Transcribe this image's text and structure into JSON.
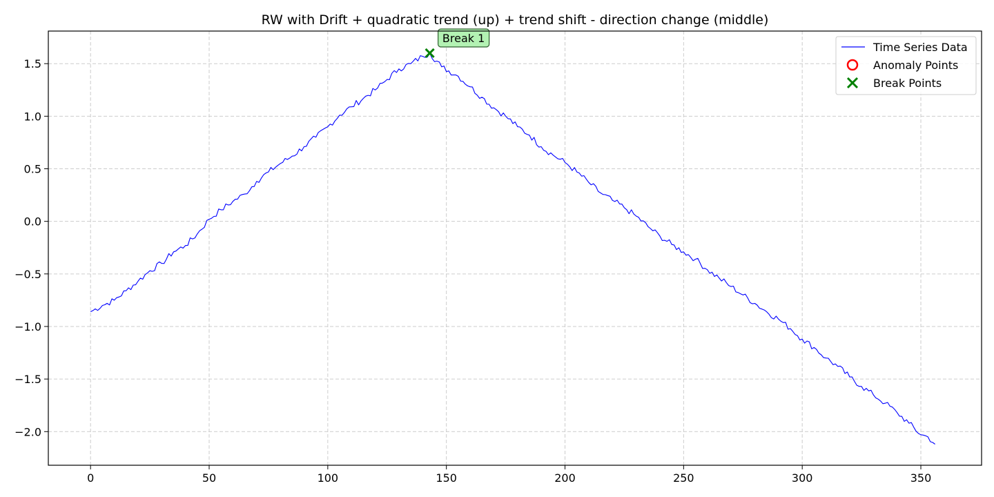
{
  "chart_data": {
    "type": "line",
    "title": "RW with Drift + quadratic trend (up) + trend shift - direction change (middle)",
    "xlabel": "",
    "ylabel": "",
    "xlim": [
      -17.8,
      375.6
    ],
    "ylim": [
      -2.32,
      1.81
    ],
    "xticks": [
      0,
      50,
      100,
      150,
      200,
      250,
      300,
      350
    ],
    "xtick_labels": [
      "0",
      "50",
      "100",
      "150",
      "200",
      "250",
      "300",
      "350"
    ],
    "yticks": [
      -2.0,
      -1.5,
      -1.0,
      -0.5,
      0.0,
      0.5,
      1.0,
      1.5
    ],
    "ytick_labels": [
      "−2.0",
      "−1.5",
      "−1.0",
      "−0.5",
      "0.0",
      "0.5",
      "1.0",
      "1.5"
    ],
    "grid": true,
    "legend_position": "top-right",
    "colors": {
      "series": "#0000ff",
      "anomaly": "#ff0000",
      "break": "#008000",
      "grid": "#cccccc",
      "annotation_fill": "#b3f2b3",
      "annotation_edge": "#2e5e2e"
    },
    "legend": [
      {
        "label": "Time Series Data",
        "marker": "line"
      },
      {
        "label": "Anomaly Points",
        "marker": "circle"
      },
      {
        "label": "Break Points",
        "marker": "x"
      }
    ],
    "series": [
      {
        "name": "Time Series Data",
        "x": [
          0,
          5,
          10,
          15,
          20,
          25,
          30,
          35,
          40,
          45,
          50,
          55,
          60,
          65,
          70,
          75,
          80,
          85,
          90,
          95,
          100,
          105,
          110,
          115,
          120,
          125,
          130,
          135,
          140,
          143,
          148,
          155,
          160,
          165,
          170,
          175,
          180,
          185,
          190,
          195,
          200,
          205,
          210,
          215,
          220,
          225,
          230,
          235,
          240,
          245,
          250,
          255,
          260,
          265,
          270,
          275,
          280,
          285,
          290,
          295,
          300,
          305,
          310,
          315,
          320,
          325,
          330,
          335,
          340,
          345,
          350,
          353,
          356
        ],
        "y": [
          -0.86,
          -0.8,
          -0.75,
          -0.66,
          -0.57,
          -0.47,
          -0.4,
          -0.29,
          -0.23,
          -0.12,
          0.02,
          0.11,
          0.19,
          0.26,
          0.38,
          0.47,
          0.55,
          0.62,
          0.71,
          0.8,
          0.9,
          1.01,
          1.09,
          1.17,
          1.25,
          1.35,
          1.45,
          1.5,
          1.57,
          1.6,
          1.47,
          1.38,
          1.28,
          1.18,
          1.08,
          1.0,
          0.9,
          0.82,
          0.71,
          0.63,
          0.56,
          0.47,
          0.37,
          0.27,
          0.2,
          0.13,
          0.05,
          -0.05,
          -0.14,
          -0.22,
          -0.29,
          -0.36,
          -0.46,
          -0.54,
          -0.62,
          -0.7,
          -0.78,
          -0.86,
          -0.93,
          -1.02,
          -1.12,
          -1.2,
          -1.3,
          -1.38,
          -1.48,
          -1.57,
          -1.65,
          -1.73,
          -1.82,
          -1.92,
          -2.03,
          -2.05,
          -2.12
        ]
      }
    ],
    "anomaly_points": [],
    "break_points": [
      {
        "x": 143,
        "y": 1.6,
        "label": "Break 1"
      }
    ]
  }
}
